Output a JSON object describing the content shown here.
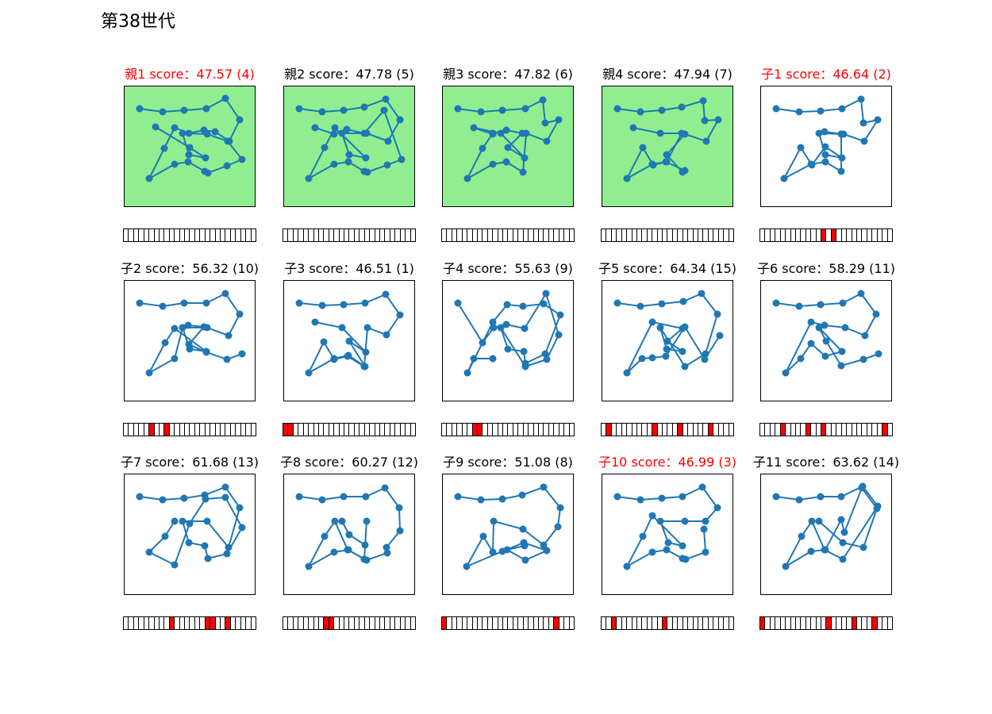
{
  "page": {
    "title": "第38世代"
  },
  "colors": {
    "line": "#1f77b4",
    "parent_bg": "#90ee90",
    "mutation": "#ff0000",
    "best_title": "#ff0000"
  },
  "chart_data": [
    {
      "type": "line",
      "title": "親1 score：47.57 (4)",
      "role": "parent",
      "best": true,
      "x": [
        19,
        48,
        75,
        103,
        127,
        145,
        132,
        114,
        100,
        81,
        63,
        50,
        31,
        63,
        80,
        101,
        105,
        129,
        148,
        130,
        104,
        73,
        81,
        102,
        82,
        39
      ],
      "y": [
        125,
        121,
        123,
        125,
        138,
        111,
        84,
        96,
        98,
        94,
        101,
        75,
        37,
        55,
        58,
        46,
        44,
        53,
        61,
        84,
        93,
        94,
        67,
        63,
        76,
        102
      ],
      "mutations": []
    },
    {
      "type": "line",
      "title": "親2 score：47.78 (5)",
      "role": "parent",
      "best": false,
      "x": [
        19,
        48,
        75,
        101,
        128,
        146,
        131,
        104,
        73,
        82,
        103,
        64,
        51,
        31,
        63,
        81,
        101,
        105,
        130,
        148,
        126,
        101,
        79,
        63,
        39
      ],
      "y": [
        125,
        121,
        123,
        127,
        137,
        111,
        84,
        94,
        94,
        67,
        63,
        101,
        76,
        37,
        55,
        58,
        46,
        45,
        54,
        61,
        123,
        94,
        99,
        93,
        101
      ],
      "mutations": []
    },
    {
      "type": "line",
      "title": "親3 score：47.82 (6)",
      "role": "parent",
      "best": false,
      "x": [
        19,
        48,
        75,
        104,
        126,
        129,
        146,
        131,
        105,
        101,
        80,
        63,
        31,
        50,
        63,
        80,
        100,
        82,
        103,
        73,
        39,
        63
      ],
      "y": [
        125,
        121,
        123,
        125,
        136,
        107,
        111,
        84,
        94,
        45,
        58,
        55,
        37,
        75,
        94,
        98,
        94,
        76,
        63,
        94,
        101,
        93
      ],
      "mutations": []
    },
    {
      "type": "line",
      "title": "親4 score：47.94 (7)",
      "role": "parent",
      "best": false,
      "x": [
        19,
        48,
        75,
        100,
        127,
        129,
        146,
        131,
        104,
        81,
        101,
        104,
        80,
        64,
        51,
        31,
        63,
        81,
        100,
        73,
        39
      ],
      "y": [
        125,
        121,
        123,
        127,
        135,
        110,
        111,
        84,
        93,
        67,
        45,
        47,
        58,
        54,
        76,
        37,
        55,
        58,
        94,
        94,
        101
      ],
      "mutations": []
    },
    {
      "type": "line",
      "title": "子1 score：46.64 (2)",
      "role": "child",
      "best": true,
      "x": [
        19,
        48,
        75,
        102,
        126,
        129,
        147,
        130,
        104,
        73,
        81,
        102,
        81,
        64,
        50,
        29,
        63,
        81,
        101,
        101,
        80
      ],
      "y": [
        125,
        121,
        122,
        125,
        137,
        107,
        111,
        84,
        93,
        94,
        67,
        63,
        77,
        54,
        76,
        37,
        55,
        58,
        46,
        93,
        96
      ],
      "mutations": [
        12,
        14
      ]
    },
    {
      "type": "line",
      "title": "子2 score：56.32 (10)",
      "role": "child",
      "best": false,
      "x": [
        19,
        48,
        75,
        103,
        127,
        145,
        131,
        104,
        73,
        82,
        103,
        63,
        51,
        31,
        63,
        73,
        80,
        100,
        81,
        103,
        129,
        148
      ],
      "y": [
        125,
        121,
        125,
        125,
        137,
        111,
        84,
        94,
        94,
        67,
        64,
        93,
        75,
        37,
        55,
        94,
        97,
        95,
        73,
        63,
        54,
        61
      ],
      "mutations": [
        5,
        8
      ]
    },
    {
      "type": "line",
      "title": "子3 score：46.51 (1)",
      "role": "child",
      "best": false,
      "x": [
        19,
        48,
        75,
        102,
        128,
        146,
        129,
        105,
        101,
        80,
        63,
        50,
        31,
        63,
        81,
        102,
        82,
        103,
        73,
        39
      ],
      "y": [
        125,
        122,
        123,
        125,
        136,
        110,
        85,
        94,
        45,
        58,
        54,
        76,
        37,
        55,
        59,
        45,
        77,
        63,
        94,
        101
      ],
      "mutations": [
        0,
        1
      ]
    },
    {
      "type": "line",
      "title": "子4 score：55.63 (9)",
      "role": "child",
      "best": false,
      "x": [
        19,
        50,
        64,
        80,
        103,
        130,
        146,
        131,
        104,
        73,
        82,
        102,
        104,
        129,
        148,
        127,
        101,
        81,
        63,
        31,
        39,
        63
      ],
      "y": [
        125,
        75,
        94,
        98,
        93,
        137,
        85,
        54,
        45,
        94,
        67,
        64,
        49,
        61,
        110,
        124,
        121,
        123,
        101,
        37,
        55,
        55
      ],
      "mutations": [
        6,
        7
      ]
    },
    {
      "type": "line",
      "title": "子5 score：64.34 (15)",
      "role": "child",
      "best": false,
      "x": [
        19,
        48,
        75,
        102,
        125,
        145,
        130,
        104,
        73,
        81,
        101,
        82,
        101,
        63,
        31,
        50,
        63,
        80,
        104,
        129,
        148
      ],
      "y": [
        125,
        121,
        124,
        127,
        137,
        111,
        61,
        45,
        94,
        67,
        64,
        77,
        93,
        101,
        37,
        55,
        56,
        58,
        95,
        54,
        84
      ],
      "mutations": [
        1,
        10,
        15,
        21
      ]
    },
    {
      "type": "line",
      "title": "子6 score：58.29 (11)",
      "role": "child",
      "best": false,
      "x": [
        19,
        48,
        75,
        103,
        126,
        145,
        131,
        106,
        80,
        63,
        31,
        50,
        63,
        81,
        102,
        73,
        82,
        101,
        129,
        148
      ],
      "y": [
        125,
        121,
        123,
        125,
        137,
        111,
        84,
        94,
        97,
        101,
        37,
        55,
        74,
        58,
        64,
        94,
        77,
        46,
        54,
        61
      ],
      "mutations": [
        4,
        9,
        12,
        24
      ]
    },
    {
      "type": "line",
      "title": "子7 score：61.68 (13)",
      "role": "child",
      "best": false,
      "x": [
        19,
        48,
        75,
        101,
        127,
        145,
        131,
        104,
        73,
        81,
        101,
        105,
        129,
        148,
        127,
        102,
        82,
        63,
        31,
        51,
        63
      ],
      "y": [
        125,
        121,
        123,
        127,
        137,
        111,
        61,
        94,
        94,
        67,
        63,
        47,
        53,
        86,
        124,
        122,
        91,
        39,
        55,
        75,
        94
      ],
      "mutations": [
        9,
        16,
        17,
        20
      ]
    },
    {
      "type": "line",
      "title": "子8 score：60.27 (12)",
      "role": "child",
      "best": false,
      "x": [
        19,
        48,
        75,
        103,
        127,
        145,
        146,
        129,
        130,
        104,
        80,
        64,
        51,
        31,
        63,
        81,
        101,
        104,
        102,
        82,
        73
      ],
      "y": [
        125,
        121,
        125,
        125,
        136,
        111,
        82,
        61,
        54,
        45,
        58,
        94,
        75,
        37,
        55,
        58,
        46,
        94,
        64,
        77,
        94
      ],
      "mutations": [
        8,
        9
      ]
    },
    {
      "type": "line",
      "title": "子9 score：51.08 (8)",
      "role": "child",
      "best": false,
      "x": [
        19,
        48,
        75,
        100,
        127,
        148,
        145,
        127,
        101,
        64,
        63,
        51,
        30,
        75,
        102,
        131,
        104,
        81,
        103
      ],
      "y": [
        125,
        121,
        122,
        127,
        137,
        111,
        87,
        64,
        84,
        94,
        55,
        75,
        37,
        56,
        67,
        57,
        45,
        58,
        63
      ],
      "mutations": [
        0,
        22
      ]
    },
    {
      "type": "line",
      "title": "子10 score：46.99 (3)",
      "role": "child",
      "best": true,
      "x": [
        19,
        48,
        75,
        101,
        126,
        145,
        130,
        104,
        73,
        83,
        101,
        63,
        51,
        31,
        63,
        81,
        101,
        105,
        130,
        128
      ],
      "y": [
        125,
        121,
        123,
        125,
        137,
        111,
        94,
        94,
        94,
        67,
        63,
        101,
        75,
        37,
        55,
        58,
        47,
        46,
        55,
        84
      ],
      "mutations": [
        2,
        12
      ]
    },
    {
      "type": "line",
      "title": "子11 score：63.62 (14)",
      "role": "child",
      "best": false,
      "x": [
        19,
        48,
        75,
        101,
        128,
        147,
        103,
        80,
        64,
        51,
        31,
        63,
        81,
        101,
        105,
        127,
        146,
        129,
        103,
        73
      ],
      "y": [
        125,
        121,
        125,
        125,
        138,
        113,
        46,
        58,
        94,
        75,
        37,
        56,
        58,
        96,
        80,
        136,
        110,
        61,
        67,
        94
      ],
      "mutations": [
        0,
        13,
        18,
        22
      ]
    }
  ]
}
